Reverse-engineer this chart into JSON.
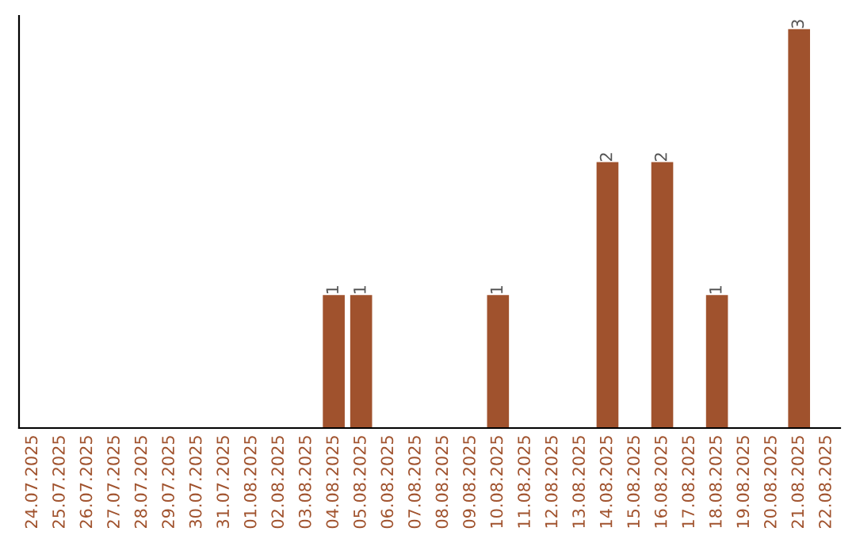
{
  "chart_data": {
    "type": "bar",
    "categories": [
      "24.07.2025",
      "25.07.2025",
      "26.07.2025",
      "27.07.2025",
      "28.07.2025",
      "29.07.2025",
      "30.07.2025",
      "31.07.2025",
      "01.08.2025",
      "02.08.2025",
      "03.08.2025",
      "04.08.2025",
      "05.08.2025",
      "06.08.2025",
      "07.08.2025",
      "08.08.2025",
      "09.08.2025",
      "10.08.2025",
      "11.08.2025",
      "12.08.2025",
      "13.08.2025",
      "14.08.2025",
      "15.08.2025",
      "16.08.2025",
      "17.08.2025",
      "18.08.2025",
      "19.08.2025",
      "20.08.2025",
      "21.08.2025",
      "22.08.2025"
    ],
    "values": [
      0,
      0,
      0,
      0,
      0,
      0,
      0,
      0,
      0,
      0,
      0,
      1,
      1,
      0,
      0,
      0,
      0,
      1,
      0,
      0,
      0,
      2,
      0,
      2,
      0,
      1,
      0,
      0,
      3,
      0
    ],
    "value_labels": [
      null,
      null,
      null,
      null,
      null,
      null,
      null,
      null,
      null,
      null,
      null,
      "1",
      "1",
      null,
      null,
      null,
      null,
      "1",
      null,
      null,
      null,
      "2",
      null,
      "2",
      null,
      "1",
      null,
      null,
      "3",
      null
    ],
    "color": "#a0522d",
    "ylim": [
      0,
      3.1
    ],
    "tick_labels": "x",
    "grid": false,
    "legend": false
  }
}
